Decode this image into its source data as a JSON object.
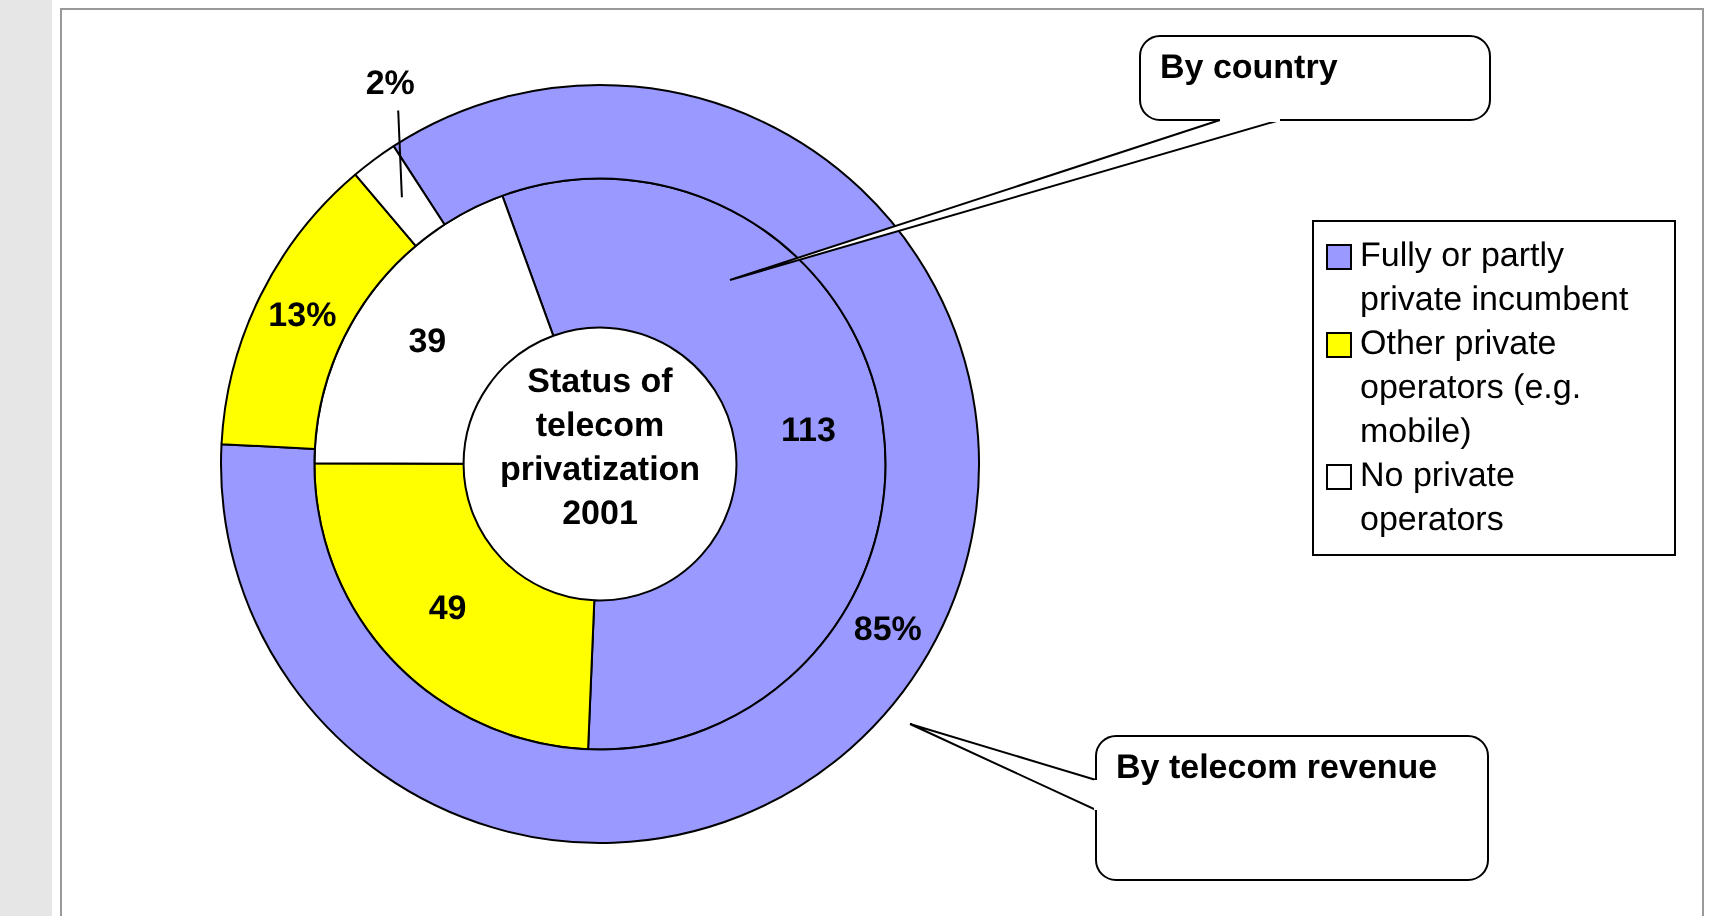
{
  "chart_data": {
    "type": "donut",
    "title": "Status of telecom privatization 2001",
    "categories": [
      "Fully or partly private incumbent",
      "Other private operators (e.g. mobile)",
      "No private operators"
    ],
    "colors": [
      "#9999ff",
      "#ffff00",
      "#ffffff"
    ],
    "series": [
      {
        "name": "By country",
        "values": [
          113,
          49,
          39
        ],
        "value_labels": [
          "113",
          "49",
          "39"
        ]
      },
      {
        "name": "By telecom revenue",
        "values": [
          85,
          13,
          2
        ],
        "value_labels": [
          "85%",
          "13%",
          "2%"
        ]
      }
    ],
    "legend": "right"
  }
}
